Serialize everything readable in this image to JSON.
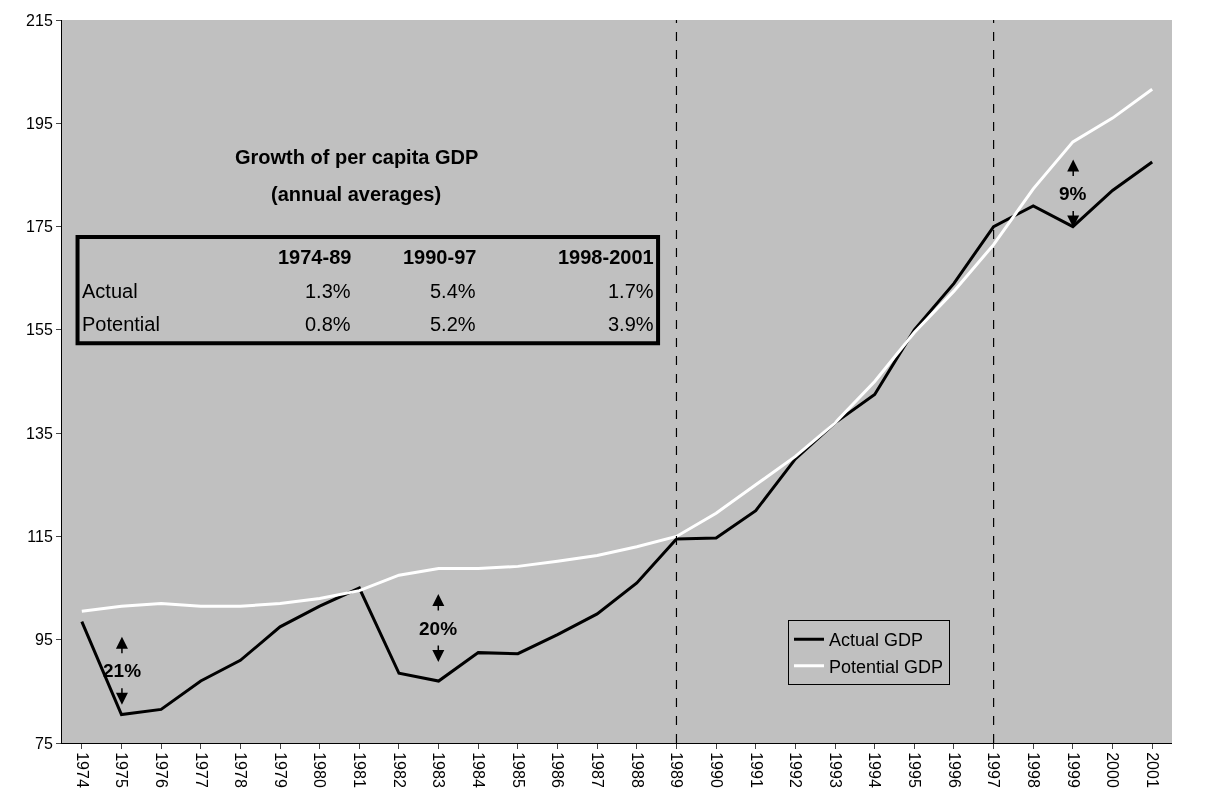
{
  "chart_data": {
    "type": "line",
    "x": [
      1974,
      1975,
      1976,
      1977,
      1978,
      1979,
      1980,
      1981,
      1982,
      1983,
      1984,
      1985,
      1986,
      1987,
      1988,
      1989,
      1990,
      1991,
      1992,
      1993,
      1994,
      1995,
      1996,
      1997,
      1998,
      1999,
      2000,
      2001
    ],
    "series": [
      {
        "name": "Actual GDP",
        "color": "#000000",
        "values": [
          98.5,
          80.5,
          81.5,
          87,
          91,
          97.5,
          101.5,
          105,
          88.5,
          87,
          92.5,
          92.3,
          96,
          100,
          106,
          114.5,
          114.7,
          120,
          130,
          137,
          142.5,
          155,
          164,
          175,
          179,
          175,
          182,
          187.5
        ]
      },
      {
        "name": "Potential GDP",
        "color": "#ffffff",
        "values": [
          100.5,
          101.5,
          102,
          101.5,
          101.5,
          102,
          103,
          104.5,
          107.5,
          108.8,
          108.8,
          109.2,
          110.2,
          111.3,
          113,
          115,
          119.5,
          125,
          130.5,
          137,
          145,
          154.5,
          162.5,
          171.5,
          182.3,
          191.4,
          196,
          201.6
        ]
      }
    ],
    "xlim": [
      1973.5,
      2001.5
    ],
    "xticks": [
      1974,
      1975,
      1976,
      1977,
      1978,
      1979,
      1980,
      1981,
      1982,
      1983,
      1984,
      1985,
      1986,
      1987,
      1988,
      1989,
      1990,
      1991,
      1992,
      1993,
      1994,
      1995,
      1996,
      1997,
      1998,
      1999,
      2000,
      2001
    ],
    "ylim": [
      75,
      215
    ],
    "yticks": [
      75,
      95,
      115,
      135,
      155,
      175,
      195,
      215
    ],
    "ref_lines": [
      {
        "axis": "x",
        "value": 1989,
        "color": "#000000",
        "line_style": "dashed"
      },
      {
        "axis": "x",
        "value": 1997,
        "color": "#000000",
        "line_style": "dashed"
      }
    ],
    "annotations": [
      "Growth of per capita GDP",
      "(annual averages)",
      "1974-89",
      "1990-97",
      "1998-2001",
      "Actual",
      "1.3%",
      "5.4%",
      "1.7%",
      "Potential",
      "0.8%",
      "5.2%",
      "3.9%",
      "21%",
      "20%",
      "9%"
    ],
    "legend": "bottom right",
    "grid": false,
    "marker": "none",
    "line_style": "solid"
  }
}
